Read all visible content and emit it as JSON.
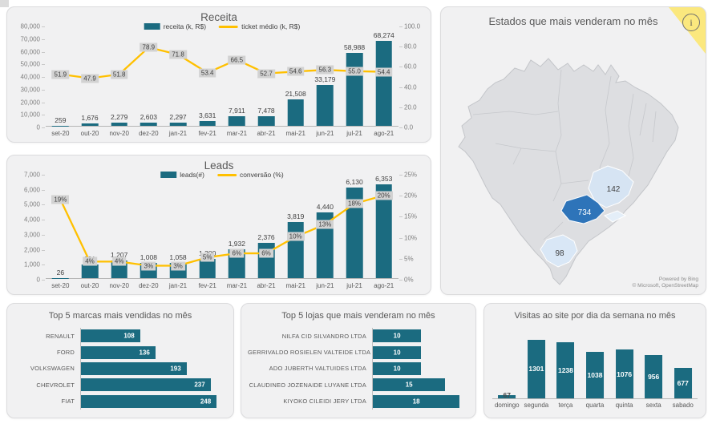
{
  "theme": {
    "bar_color": "#1B6B80",
    "line_color": "#FFC000",
    "line_label_bg": "#D2D2D2",
    "panel_bg": "#F1F1F2",
    "info_corner_yellow": "#FBE87E"
  },
  "chart_data": [
    {
      "id": "receita",
      "type": "bar",
      "subtype": "combo-bar-line",
      "title": "Receita",
      "legend": [
        {
          "label": "receita (k, R$)",
          "type": "bar"
        },
        {
          "label": "ticket médio (k, R$)",
          "type": "line"
        }
      ],
      "legend_position": "top-center",
      "categories": [
        "set-20",
        "out-20",
        "nov-20",
        "dez-20",
        "jan-21",
        "fev-21",
        "mar-21",
        "abr-21",
        "mai-21",
        "jun-21",
        "jul-21",
        "ago-21"
      ],
      "series": [
        {
          "name": "receita (k, R$)",
          "axis": "left",
          "values": [
            259,
            1676,
            2279,
            2603,
            2297,
            3631,
            7911,
            7478,
            21508,
            33179,
            58988,
            68274
          ],
          "labels": [
            "259",
            "1,676",
            "2,279",
            "2,603",
            "2,297",
            "3,631",
            "7,911",
            "7,478",
            "21,508",
            "33,179",
            "58,988",
            "68,274"
          ]
        },
        {
          "name": "ticket médio (k, R$)",
          "axis": "right",
          "values": [
            51.9,
            47.9,
            51.8,
            78.9,
            71.8,
            53.4,
            66.5,
            52.7,
            54.6,
            56.3,
            55.0,
            54.4
          ],
          "labels": [
            "51.9",
            "47.9",
            "51.8",
            "78.9",
            "71.8",
            "53.4",
            "66.5",
            "52.7",
            "54.6",
            "56.3",
            "55.0",
            "54.4"
          ]
        }
      ],
      "ylim": [
        0,
        80000
      ],
      "y2lim": [
        0,
        100
      ],
      "left_ticks": [
        "80,000",
        "70,000",
        "60,000",
        "50,000",
        "40,000",
        "30,000",
        "20,000",
        "10,000",
        "0"
      ],
      "right_ticks": [
        "100.0",
        "80.0",
        "60.0",
        "40.0",
        "20.0",
        "0.0"
      ],
      "grid": false
    },
    {
      "id": "leads",
      "type": "bar",
      "subtype": "combo-bar-line",
      "title": "Leads",
      "legend": [
        {
          "label": "leads(#)",
          "type": "bar"
        },
        {
          "label": "conversão (%)",
          "type": "line"
        }
      ],
      "legend_position": "top-center",
      "categories": [
        "set-20",
        "out-20",
        "nov-20",
        "dez-20",
        "jan-21",
        "fev-21",
        "mar-21",
        "abr-21",
        "mai-21",
        "jun-21",
        "jul-21",
        "ago-21"
      ],
      "series": [
        {
          "name": "leads(#)",
          "axis": "left",
          "values": [
            26,
            931,
            1207,
            1008,
            1058,
            1300,
            1932,
            2376,
            3819,
            4440,
            6130,
            6353
          ],
          "labels": [
            "26",
            "931",
            "1,207",
            "1,008",
            "1,058",
            "1,300",
            "1,932",
            "2,376",
            "3,819",
            "4,440",
            "6,130",
            "6,353"
          ]
        },
        {
          "name": "conversão (%)",
          "axis": "right",
          "values": [
            19,
            4,
            4,
            3,
            3,
            5,
            6,
            6,
            10,
            13,
            18,
            20
          ],
          "labels": [
            "19%",
            "4%",
            "4%",
            "3%",
            "3%",
            "5%",
            "6%",
            "6%",
            "10%",
            "13%",
            "18%",
            "20%"
          ]
        }
      ],
      "ylim": [
        0,
        7000
      ],
      "y2lim": [
        0,
        25
      ],
      "left_ticks": [
        "7,000",
        "6,000",
        "5,000",
        "4,000",
        "3,000",
        "2,000",
        "1,000",
        "0"
      ],
      "right_ticks": [
        "25%",
        "20%",
        "15%",
        "10%",
        "5%",
        "0%"
      ],
      "grid": false
    },
    {
      "id": "estados-map",
      "type": "heatmap",
      "subtype": "choropleth-map",
      "title": "Estados que mais venderam no mês",
      "states": [
        {
          "id": "minas-gerais",
          "value": 142,
          "value_label": "142",
          "fill": "#D6E4F3"
        },
        {
          "id": "sao-paulo",
          "value": 734,
          "value_label": "734",
          "fill": "#2E74B9"
        },
        {
          "id": "rio-de-janeiro",
          "fill": "#E4EEF8"
        },
        {
          "id": "rio-grande-do-sul",
          "value": 98,
          "value_label": "98",
          "fill": "#D9E7F6"
        }
      ],
      "info_icon_glyph": "i",
      "attribution": [
        "Powered by Bing",
        "© Microsoft, OpenStreetMap"
      ]
    },
    {
      "id": "marcas",
      "type": "bar",
      "subtype": "bar-horizontal",
      "title": "Top 5 marcas mais vendidas no mês",
      "categories": [
        "RENAULT",
        "FORD",
        "VOLKSWAGEN",
        "CHEVROLET",
        "FIAT"
      ],
      "values": [
        108,
        136,
        193,
        237,
        248
      ],
      "labels": [
        "108",
        "136",
        "193",
        "237",
        "248"
      ],
      "axis_max": 255,
      "value_position": "end",
      "label_col_width": 76
    },
    {
      "id": "lojas",
      "type": "bar",
      "subtype": "bar-horizontal",
      "title": "Top 5 lojas que mais venderam no mês",
      "categories": [
        "NILFA CID SILVANDRO LTDA",
        "GERRIVALDO ROSIELEN VALTEIDE LTDA",
        "ADO JUBERTH VALTUIDES LTDA",
        "CLAUDINEO JOZENAIDE LUYANE LTDA",
        "KIYOKO CILEIDI JERY LTDA"
      ],
      "values": [
        10,
        10,
        10,
        15,
        18
      ],
      "labels": [
        "10",
        "10",
        "10",
        "15",
        "18"
      ],
      "axis_max": 18.6,
      "value_position": "center",
      "label_col_width": 148
    },
    {
      "id": "visitas",
      "type": "bar",
      "subtype": "bar-vertical",
      "title": "Visitas ao site por dia da semana no mês",
      "categories": [
        "domingo",
        "segunda",
        "terça",
        "quarta",
        "quinta",
        "sexta",
        "sabado"
      ],
      "values": [
        67,
        1301,
        1238,
        1038,
        1076,
        956,
        677
      ],
      "labels": [
        "67",
        "1301",
        "1238",
        "1038",
        "1076",
        "956",
        "677"
      ],
      "axis_max": 1600
    }
  ]
}
